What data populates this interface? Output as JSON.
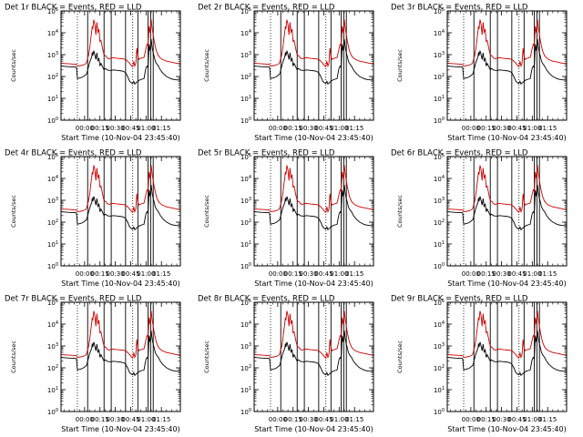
{
  "figure": {
    "ylabel": "Counts/sec",
    "xlabel": "Start Time (10-Nov-04 23:45:40)",
    "xticks": [
      "00:00",
      "00:15",
      "00:30",
      "00:45",
      "01:00",
      "01:15"
    ]
  },
  "chart_data": [
    {
      "type": "line",
      "title": "Det 1r BLACK = Events, RED = LLD"
    },
    {
      "type": "line",
      "title": "Det 2r BLACK = Events, RED = LLD"
    },
    {
      "type": "line",
      "title": "Det 3r BLACK = Events, RED = LLD"
    },
    {
      "type": "line",
      "title": "Det 4r BLACK = Events, RED = LLD"
    },
    {
      "type": "line",
      "title": "Det 5r BLACK = Events, RED = LLD"
    },
    {
      "type": "line",
      "title": "Det 6r BLACK = Events, RED = LLD"
    },
    {
      "type": "line",
      "title": "Det 7r BLACK = Events, RED = LLD"
    },
    {
      "type": "line",
      "title": "Det 8r BLACK = Events, RED = LLD"
    },
    {
      "type": "line",
      "title": "Det 9r BLACK = Events, RED = LLD"
    }
  ],
  "shared_chart": {
    "yscale": "log",
    "ylim": [
      1,
      100000
    ],
    "ytick_exponents": [
      0,
      1,
      2,
      3,
      4,
      5
    ],
    "xlim": [
      -23.0,
      93.5
    ],
    "xtick_values": [
      0,
      15,
      30,
      45,
      60,
      75
    ],
    "dotted_vlines": [
      -7,
      47
    ],
    "solid_vlines": [
      3,
      19,
      26,
      40,
      52,
      62,
      64.5,
      67
    ],
    "series": [
      {
        "name": "Events",
        "color": "#000000",
        "x": [
          -23,
          -15,
          -8,
          -7,
          -3,
          -1,
          1,
          2,
          3,
          4,
          5,
          6,
          7,
          7.5,
          8,
          9,
          10,
          11,
          12,
          13,
          14,
          15,
          16,
          18,
          19,
          20,
          21,
          22,
          24,
          26,
          28,
          32,
          36,
          38,
          40,
          42,
          44,
          46,
          47,
          48,
          49,
          50,
          51,
          52,
          53,
          54,
          56,
          58,
          59,
          60,
          61,
          62,
          63,
          64,
          65,
          66,
          67,
          68,
          69,
          70,
          72,
          74,
          76,
          78,
          80,
          82,
          84,
          86,
          88,
          90,
          92,
          93.5
        ],
        "y": [
          300,
          280,
          270,
          80,
          90,
          100,
          120,
          130,
          200,
          300,
          450,
          600,
          800,
          1300,
          900,
          1500,
          1000,
          600,
          1200,
          500,
          700,
          300,
          400,
          250,
          200,
          230,
          220,
          200,
          190,
          190,
          200,
          190,
          180,
          170,
          150,
          100,
          60,
          50,
          48,
          60,
          45,
          50,
          55,
          60,
          65,
          70,
          75,
          80,
          150,
          250,
          300,
          250,
          3000,
          1500,
          5000,
          2000,
          1200,
          800,
          500,
          400,
          300,
          200,
          150,
          120,
          100,
          90,
          80,
          75,
          72,
          70,
          68,
          68
        ]
      },
      {
        "name": "LLD",
        "color": "#cc0000",
        "x": [
          -23,
          -15,
          -8,
          -7,
          -3,
          -1,
          1,
          2,
          3,
          4,
          5,
          6,
          7,
          7.5,
          8,
          9,
          10,
          11,
          12,
          13,
          14,
          15,
          16,
          18,
          19,
          20,
          21,
          22,
          24,
          26,
          28,
          32,
          36,
          38,
          40,
          42,
          44,
          46,
          47,
          48,
          49,
          50,
          51,
          52,
          53,
          54,
          56,
          58,
          59,
          60,
          61,
          62,
          63,
          64,
          65,
          66,
          67,
          68,
          69,
          70,
          72,
          74,
          76,
          78,
          80,
          82,
          84,
          86,
          88,
          90,
          92,
          93.5
        ],
        "y": [
          400,
          380,
          360,
          300,
          320,
          340,
          380,
          450,
          700,
          1000,
          2000,
          5000,
          12000,
          20000,
          15000,
          40000,
          25000,
          8000,
          30000,
          10000,
          15000,
          4000,
          4500,
          1500,
          1000,
          900,
          850,
          700,
          650,
          700,
          720,
          680,
          650,
          640,
          600,
          500,
          400,
          300,
          280,
          500,
          300,
          400,
          2000,
          800,
          600,
          650,
          700,
          750,
          1200,
          2000,
          3000,
          2500,
          20000,
          10000,
          40000,
          15000,
          8000,
          4000,
          2500,
          1500,
          900,
          700,
          600,
          550,
          500,
          480,
          460,
          440,
          420,
          400,
          380,
          360
        ]
      }
    ]
  }
}
